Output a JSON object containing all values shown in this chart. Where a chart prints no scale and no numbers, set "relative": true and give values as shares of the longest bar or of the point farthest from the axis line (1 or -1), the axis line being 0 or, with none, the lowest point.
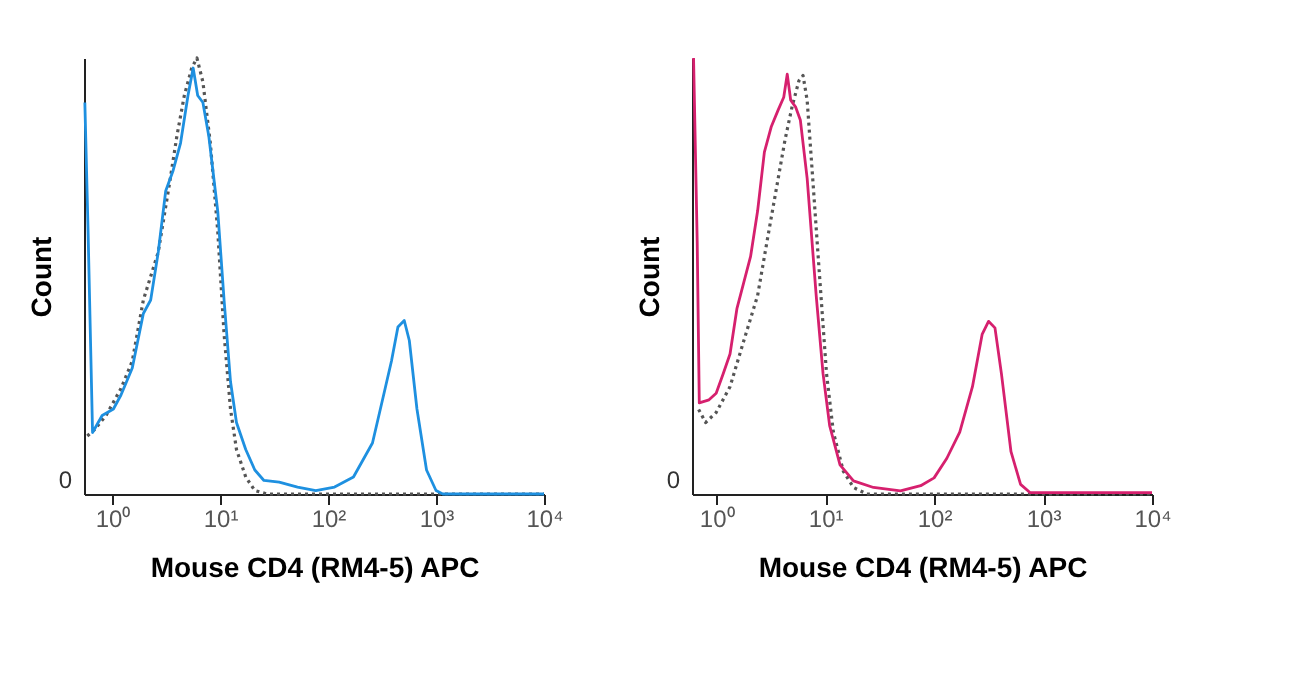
{
  "chart_data": [
    {
      "type": "line",
      "xlabel": "Mouse CD4 (RM4-5) APC",
      "ylabel": "Count",
      "relative": true,
      "log": "x",
      "marker": "none",
      "xlim": [
        0.55,
        10000
      ],
      "xticks": [
        {
          "value": 1,
          "label": "10⁰"
        },
        {
          "value": 10,
          "label": "10¹"
        },
        {
          "value": 100,
          "label": "10²"
        },
        {
          "value": 1000,
          "label": "10³"
        },
        {
          "value": 10000,
          "label": "10⁴"
        }
      ],
      "annotations": [
        "0"
      ],
      "series": [
        {
          "color": "#555555",
          "line_style": "dotted",
          "x": [
            0.59,
            0.69,
            0.88,
            1.21,
            1.54,
            1.95,
            2.68,
            3.4,
            3.98,
            4.67,
            5.47,
            6.11,
            6.94,
            8.13,
            9.53,
            10.9,
            12.5,
            14.2,
            17.3,
            21.0,
            27.2,
            10000
          ],
          "values": [
            0.133,
            0.148,
            0.18,
            0.242,
            0.305,
            0.445,
            0.555,
            0.711,
            0.82,
            0.914,
            0.977,
            1,
            0.945,
            0.805,
            0.602,
            0.367,
            0.195,
            0.102,
            0.039,
            0.008,
            0,
            0
          ]
        },
        {
          "color": "#1e90e0",
          "line_style": "solid",
          "x": [
            0.56,
            0.6,
            0.66,
            0.81,
            1.03,
            1.21,
            1.54,
            1.95,
            2.28,
            2.68,
            3.14,
            3.68,
            4.31,
            5.05,
            5.64,
            6.21,
            6.94,
            7.88,
            9.53,
            10.9,
            12.5,
            14.2,
            17.3,
            21.0,
            25.5,
            35.3,
            52.2,
            77.1,
            115,
            172,
            258,
            338,
            387,
            444,
            508,
            566,
            666,
            817,
            1000,
            1155,
            10000
          ],
          "values": [
            0.898,
            0.602,
            0.141,
            0.18,
            0.195,
            0.227,
            0.289,
            0.414,
            0.445,
            0.555,
            0.695,
            0.742,
            0.805,
            0.914,
            0.977,
            0.914,
            0.898,
            0.82,
            0.648,
            0.445,
            0.258,
            0.164,
            0.102,
            0.055,
            0.031,
            0.027,
            0.016,
            0.008,
            0.016,
            0.039,
            0.117,
            0.242,
            0.305,
            0.383,
            0.398,
            0.352,
            0.195,
            0.055,
            0.008,
            0,
            0
          ]
        }
      ]
    },
    {
      "type": "line",
      "xlabel": "Mouse CD4 (RM4-5) APC",
      "ylabel": "Count",
      "relative": true,
      "log": "x",
      "marker": "none",
      "xlim": [
        0.6,
        10000
      ],
      "xticks": [
        {
          "value": 1,
          "label": "10⁰"
        },
        {
          "value": 10,
          "label": "10¹"
        },
        {
          "value": 100,
          "label": "10²"
        },
        {
          "value": 1000,
          "label": "10³"
        },
        {
          "value": 10000,
          "label": "10⁴"
        }
      ],
      "annotations": [
        "0"
      ],
      "series": [
        {
          "color": "#555555",
          "line_style": "dotted",
          "x": [
            0.69,
            0.8,
            1,
            1.34,
            1.79,
            2.4,
            2.98,
            3.71,
            4.29,
            4.97,
            5.75,
            6.27,
            6.84,
            7.69,
            8.89,
            10.3,
            11.9,
            14.7,
            18.2,
            24.1,
            10000
          ],
          "values": [
            0.194,
            0.164,
            0.187,
            0.246,
            0.351,
            0.455,
            0.59,
            0.724,
            0.813,
            0.888,
            0.948,
            0.96,
            0.903,
            0.724,
            0.5,
            0.276,
            0.142,
            0.052,
            0.015,
            0,
            0
          ]
        },
        {
          "color": "#d6206e",
          "line_style": "solid",
          "x": [
            0.62,
            0.67,
            0.7,
            0.86,
            1.0,
            1.16,
            1.34,
            1.55,
            1.79,
            2.07,
            2.4,
            2.77,
            3.21,
            3.71,
            4.17,
            4.49,
            4.83,
            5.35,
            5.92,
            6.84,
            8.28,
            9.57,
            11.0,
            13.7,
            18.2,
            27.8,
            49.1,
            75.3,
            100,
            131,
            172,
            225,
            276,
            316,
            362,
            415,
            508,
            622,
            763,
            10000
          ],
          "values": [
            1,
            0.575,
            0.209,
            0.216,
            0.231,
            0.276,
            0.321,
            0.425,
            0.485,
            0.545,
            0.649,
            0.784,
            0.843,
            0.881,
            0.91,
            0.963,
            0.903,
            0.888,
            0.858,
            0.724,
            0.455,
            0.276,
            0.157,
            0.067,
            0.03,
            0.015,
            0.007,
            0.019,
            0.037,
            0.082,
            0.142,
            0.246,
            0.366,
            0.396,
            0.381,
            0.276,
            0.097,
            0.022,
            0.003,
            0.003
          ]
        }
      ]
    }
  ]
}
